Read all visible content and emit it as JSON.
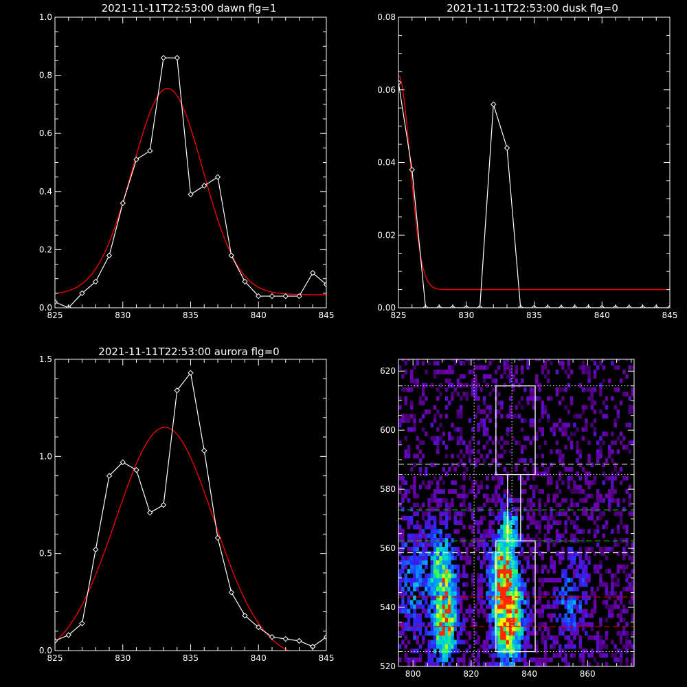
{
  "colors": {
    "background": "#000000",
    "axes": "#ffffff",
    "data_line": "#ffffff",
    "fit_line": "#ff0000",
    "dashed_white": "#ffffff",
    "dashed_green": "#00cc00",
    "dashed_red": "#cc0000"
  },
  "chart_data": [
    {
      "type": "line",
      "title": "2021-11-11T22:53:00 dawn flg=1",
      "xlim": [
        825,
        845
      ],
      "ylim": [
        0,
        1.0
      ],
      "xticks": [
        825,
        830,
        835,
        840,
        845
      ],
      "xtick_labels": [
        "825",
        "830",
        "835",
        "840",
        "845"
      ],
      "yticks": [
        0,
        0.2,
        0.4,
        0.6,
        0.8,
        1.0
      ],
      "ytick_labels": [
        "0.0",
        "0.2",
        "0.4",
        "0.6",
        "0.8",
        "1.0"
      ],
      "series": [
        {
          "style": "data-with-diamonds",
          "x": [
            825,
            826,
            827,
            828,
            829,
            830,
            831,
            832,
            833,
            834,
            835,
            836,
            837,
            838,
            839,
            840,
            841,
            842,
            843,
            844,
            845
          ],
          "y": [
            0.02,
            0.0,
            0.05,
            0.09,
            0.18,
            0.36,
            0.51,
            0.54,
            0.86,
            0.86,
            0.39,
            0.42,
            0.45,
            0.18,
            0.09,
            0.04,
            0.04,
            0.04,
            0.04,
            0.12,
            0.08
          ]
        },
        {
          "style": "gaussian-fit",
          "amplitude": 0.71,
          "center": 833.3,
          "sigma": 2.6,
          "offset": 0.045
        }
      ]
    },
    {
      "type": "line",
      "title": "2021-11-11T22:53:00 dusk flg=0",
      "xlim": [
        825,
        845
      ],
      "ylim": [
        0,
        0.08
      ],
      "xticks": [
        825,
        830,
        835,
        840,
        845
      ],
      "xtick_labels": [
        "825",
        "830",
        "835",
        "840",
        "845"
      ],
      "yticks": [
        0,
        0.02,
        0.04,
        0.06,
        0.08
      ],
      "ytick_labels": [
        "0.00",
        "0.02",
        "0.04",
        "0.06",
        "0.08"
      ],
      "series": [
        {
          "style": "data-with-diamonds",
          "x": [
            825,
            826,
            827,
            828,
            829,
            830,
            831,
            832,
            833,
            834,
            835,
            836,
            837,
            838,
            839,
            840,
            841,
            842,
            843,
            844,
            845
          ],
          "y": [
            0.062,
            0.038,
            0.0,
            0.0,
            0.0,
            0.0,
            0.0,
            0.056,
            0.044,
            0.0,
            0.0,
            0.0,
            0.0,
            0.0,
            0.0,
            0.0,
            0.0,
            0.0,
            0.0,
            0.0,
            0.0
          ]
        },
        {
          "style": "gaussian-fit",
          "amplitude": 0.059,
          "center": 825,
          "sigma": 0.85,
          "offset": 0.005
        }
      ]
    },
    {
      "type": "line",
      "title": "2021-11-11T22:53:00 aurora flg=0",
      "xlim": [
        825,
        845
      ],
      "ylim": [
        0,
        1.5
      ],
      "xticks": [
        825,
        830,
        835,
        840,
        845
      ],
      "xtick_labels": [
        "825",
        "830",
        "835",
        "840",
        "845"
      ],
      "yticks": [
        0,
        0.5,
        1.0,
        1.5
      ],
      "ytick_labels": [
        "0.0",
        "0.5",
        "1.0",
        "1.5"
      ],
      "series": [
        {
          "style": "data-with-diamonds",
          "x": [
            825,
            826,
            827,
            828,
            829,
            830,
            831,
            832,
            833,
            834,
            835,
            836,
            837,
            838,
            839,
            840,
            841,
            842,
            843,
            844,
            845
          ],
          "y": [
            0.05,
            0.08,
            0.14,
            0.52,
            0.9,
            0.97,
            0.93,
            0.71,
            0.75,
            1.34,
            1.43,
            1.03,
            0.58,
            0.3,
            0.18,
            0.12,
            0.07,
            0.06,
            0.05,
            0.02,
            0.07
          ]
        },
        {
          "style": "gaussian-fit",
          "amplitude": 1.2,
          "center": 833.1,
          "sigma": 3.6,
          "offset": -0.05
        }
      ]
    },
    {
      "type": "heatmap",
      "title": "",
      "xlim": [
        795,
        876
      ],
      "ylim": [
        520,
        624
      ],
      "xticks": [
        800,
        820,
        840,
        860
      ],
      "xtick_labels": [
        "800",
        "820",
        "840",
        "860"
      ],
      "yticks": [
        520,
        540,
        560,
        580,
        600,
        620
      ],
      "ytick_labels": [
        "520",
        "540",
        "560",
        "580",
        "600",
        "620"
      ],
      "hotspots": [
        {
          "x": 833,
          "y": 535,
          "sx": 3.5,
          "sy": 10,
          "amp": 0.85
        },
        {
          "x": 831,
          "y": 552,
          "sx": 3.5,
          "sy": 9,
          "amp": 0.6
        },
        {
          "x": 833,
          "y": 568,
          "sx": 2.2,
          "sy": 6,
          "amp": 0.4
        },
        {
          "x": 811,
          "y": 535,
          "sx": 3.0,
          "sy": 11,
          "amp": 0.7
        },
        {
          "x": 810,
          "y": 555,
          "sx": 3.0,
          "sy": 8,
          "amp": 0.45
        },
        {
          "x": 800,
          "y": 548,
          "sx": 4.0,
          "sy": 14,
          "amp": 0.3
        },
        {
          "x": 854,
          "y": 545,
          "sx": 4.0,
          "sy": 10,
          "amp": 0.3
        }
      ],
      "dotted_hlines": [
        525,
        585,
        615
      ],
      "dotted_vlines": [
        821,
        834
      ],
      "dashed_white_hlines": [
        558.5,
        588.5
      ],
      "dashed_green_hlines": [
        562.5,
        573
      ],
      "dashed_red_hlines": [
        533.5,
        543.5
      ],
      "boxes": [
        {
          "x0": 828.5,
          "x1": 842,
          "y0": 585,
          "y1": 615
        },
        {
          "x0": 832.5,
          "x1": 837,
          "y0": 562.5,
          "y1": 585
        },
        {
          "x0": 828.5,
          "x1": 842,
          "y0": 525,
          "y1": 562.5
        }
      ]
    }
  ]
}
